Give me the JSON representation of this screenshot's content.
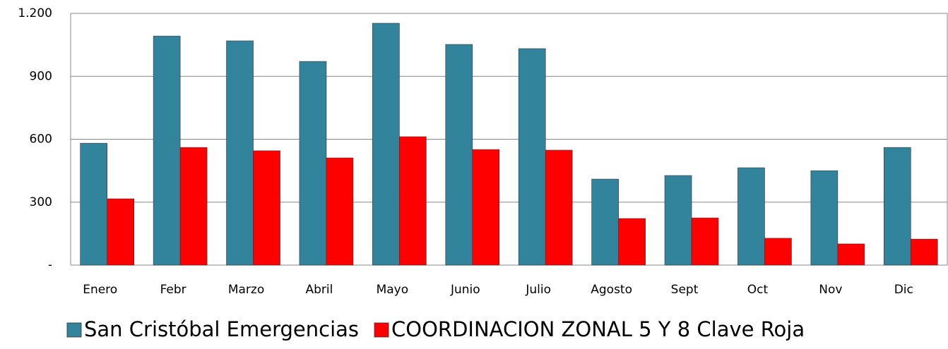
{
  "chart_data": {
    "type": "bar",
    "categories": [
      "Enero",
      "Febr",
      "Marzo",
      "Abril",
      "Mayo",
      "Junio",
      "Julio",
      "Agosto",
      "Sept",
      "Oct",
      "Nov",
      "Dic"
    ],
    "series": [
      {
        "name": "San Cristóbal Emergencias",
        "color": "#31849b",
        "values": [
          581,
          1092,
          1069,
          971,
          1153,
          1052,
          1032,
          410,
          427,
          464,
          450,
          561
        ]
      },
      {
        "name": "COORDINACION ZONAL 5 Y 8 Clave Roja",
        "color": "#ff0000",
        "values": [
          316,
          561,
          545,
          511,
          612,
          551,
          548,
          222,
          225,
          128,
          101,
          124
        ]
      }
    ],
    "ylim": [
      0,
      1200
    ],
    "yticks": [
      {
        "value": 0,
        "label": "-"
      },
      300,
      600,
      900,
      {
        "value": 1200,
        "label": "1.200"
      }
    ],
    "grid": true,
    "legend": "bottom"
  }
}
